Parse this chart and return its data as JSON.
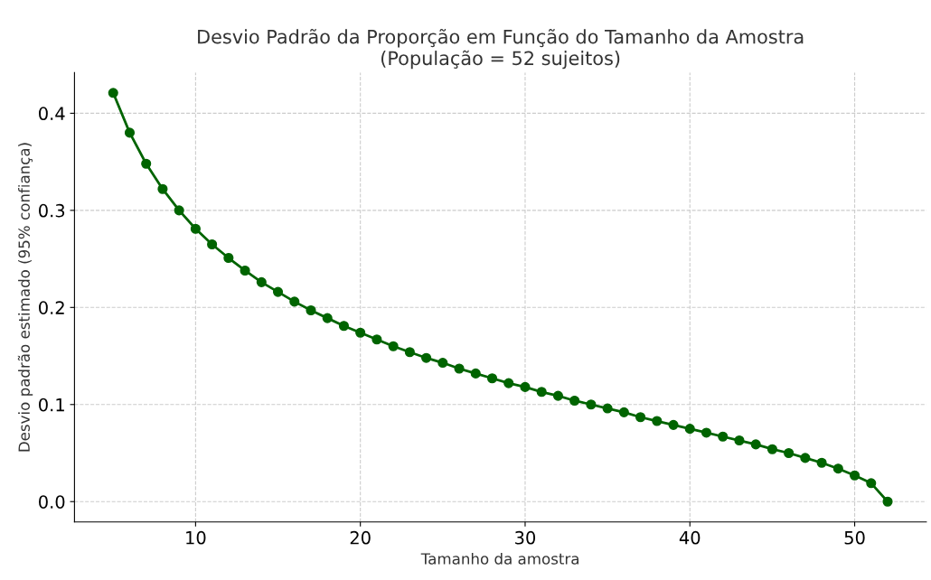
{
  "chart_data": {
    "type": "line",
    "title": "Desvio Padrão da Proporção em Função do Tamanho da Amostra\n(População = 52 sujeitos)",
    "xlabel": "Tamanho da amostra",
    "ylabel": "Desvio padrão estimado (95% confiança)",
    "x": [
      5,
      6,
      7,
      8,
      9,
      10,
      11,
      12,
      13,
      14,
      15,
      16,
      17,
      18,
      19,
      20,
      21,
      22,
      23,
      24,
      25,
      26,
      27,
      28,
      29,
      30,
      31,
      32,
      33,
      34,
      35,
      36,
      37,
      38,
      39,
      40,
      41,
      42,
      43,
      44,
      45,
      46,
      47,
      48,
      49,
      50,
      51,
      52
    ],
    "series": [
      {
        "color": "#006400",
        "values": [
          0.421,
          0.38,
          0.348,
          0.322,
          0.3,
          0.281,
          0.265,
          0.251,
          0.238,
          0.226,
          0.216,
          0.206,
          0.197,
          0.189,
          0.181,
          0.174,
          0.167,
          0.16,
          0.154,
          0.148,
          0.143,
          0.137,
          0.132,
          0.127,
          0.122,
          0.118,
          0.113,
          0.109,
          0.104,
          0.1,
          0.096,
          0.092,
          0.087,
          0.083,
          0.079,
          0.075,
          0.071,
          0.067,
          0.063,
          0.059,
          0.054,
          0.05,
          0.045,
          0.04,
          0.034,
          0.027,
          0.019,
          0.0
        ]
      }
    ],
    "xlim": [
      2.65,
      54.35
    ],
    "ylim": [
      -0.021,
      0.442
    ],
    "xticks": [
      10,
      20,
      30,
      40,
      50
    ],
    "yticks": [
      {
        "value": 0,
        "label": "0.0"
      },
      0.1,
      0.2,
      0.3,
      0.4
    ],
    "grid": true,
    "marker": "circle",
    "line_style": "solid",
    "legend": false
  }
}
